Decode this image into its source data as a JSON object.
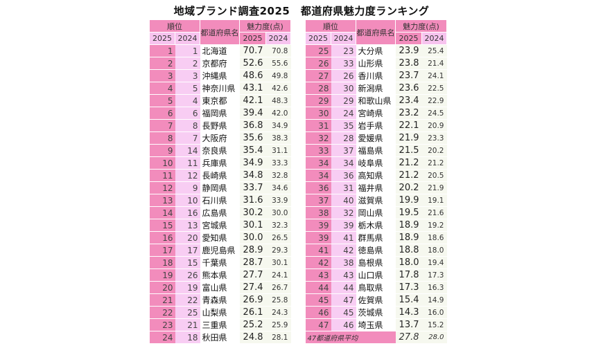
{
  "title": "地域ブランド調査2025　都道府県魅力度ランキング",
  "headers": {
    "rank": "順位",
    "name": "都道府県名",
    "score": "魅力度(点)",
    "y2025": "2025",
    "y2024": "2024"
  },
  "left": [
    [
      1,
      1,
      "北海道",
      "70.7",
      "70.8"
    ],
    [
      2,
      2,
      "京都府",
      "52.6",
      "55.6"
    ],
    [
      3,
      3,
      "沖縄県",
      "48.6",
      "49.8"
    ],
    [
      4,
      5,
      "神奈川県",
      "43.1",
      "42.6"
    ],
    [
      5,
      4,
      "東京都",
      "42.1",
      "48.3"
    ],
    [
      6,
      6,
      "福岡県",
      "39.4",
      "42.0"
    ],
    [
      7,
      8,
      "長野県",
      "36.8",
      "34.9"
    ],
    [
      8,
      7,
      "大阪府",
      "35.6",
      "38.3"
    ],
    [
      9,
      14,
      "奈良県",
      "35.4",
      "31.1"
    ],
    [
      10,
      11,
      "兵庫県",
      "34.9",
      "33.3"
    ],
    [
      11,
      12,
      "長崎県",
      "34.8",
      "32.8"
    ],
    [
      12,
      9,
      "静岡県",
      "33.7",
      "34.6"
    ],
    [
      13,
      10,
      "石川県",
      "31.6",
      "33.9"
    ],
    [
      14,
      16,
      "広島県",
      "30.2",
      "30.0"
    ],
    [
      15,
      13,
      "宮城県",
      "30.1",
      "32.3"
    ],
    [
      16,
      20,
      "愛知県",
      "30.0",
      "26.5"
    ],
    [
      17,
      17,
      "鹿児島県",
      "28.9",
      "29.3"
    ],
    [
      18,
      15,
      "千葉県",
      "28.7",
      "30.1"
    ],
    [
      19,
      26,
      "熊本県",
      "27.7",
      "24.1"
    ],
    [
      20,
      19,
      "富山県",
      "27.4",
      "26.7"
    ],
    [
      21,
      22,
      "青森県",
      "26.9",
      "25.8"
    ],
    [
      22,
      25,
      "山梨県",
      "26.1",
      "24.3"
    ],
    [
      23,
      21,
      "三重県",
      "25.2",
      "25.9"
    ],
    [
      24,
      18,
      "秋田県",
      "24.8",
      "28.1"
    ]
  ],
  "right": [
    [
      25,
      23,
      "大分県",
      "23.9",
      "25.4"
    ],
    [
      26,
      33,
      "山形県",
      "23.8",
      "21.4"
    ],
    [
      27,
      26,
      "香川県",
      "23.7",
      "24.1"
    ],
    [
      28,
      30,
      "新潟県",
      "23.6",
      "22.5"
    ],
    [
      29,
      29,
      "和歌山県",
      "23.4",
      "22.9"
    ],
    [
      30,
      24,
      "宮崎県",
      "23.2",
      "24.5"
    ],
    [
      31,
      35,
      "岩手県",
      "22.1",
      "20.9"
    ],
    [
      32,
      28,
      "愛媛県",
      "21.9",
      "23.3"
    ],
    [
      33,
      37,
      "福島県",
      "21.5",
      "20.2"
    ],
    [
      34,
      34,
      "岐阜県",
      "21.2",
      "21.2"
    ],
    [
      34,
      36,
      "高知県",
      "21.2",
      "20.5"
    ],
    [
      36,
      31,
      "福井県",
      "20.2",
      "21.9"
    ],
    [
      37,
      40,
      "滋賀県",
      "19.9",
      "19.1"
    ],
    [
      38,
      32,
      "岡山県",
      "19.5",
      "21.6"
    ],
    [
      39,
      39,
      "栃木県",
      "18.9",
      "19.2"
    ],
    [
      39,
      41,
      "群馬県",
      "18.9",
      "18.6"
    ],
    [
      41,
      42,
      "徳島県",
      "18.8",
      "18.0"
    ],
    [
      42,
      38,
      "島根県",
      "18.0",
      "19.4"
    ],
    [
      43,
      43,
      "山口県",
      "17.8",
      "17.3"
    ],
    [
      44,
      44,
      "鳥取県",
      "17.3",
      "16.3"
    ],
    [
      45,
      47,
      "佐賀県",
      "15.4",
      "14.9"
    ],
    [
      46,
      45,
      "茨城県",
      "14.3",
      "16.0"
    ],
    [
      47,
      46,
      "埼玉県",
      "13.7",
      "15.2"
    ]
  ],
  "average": {
    "label": "47都道府県平均",
    "s2025": "27.8",
    "s2024": "28.0"
  }
}
